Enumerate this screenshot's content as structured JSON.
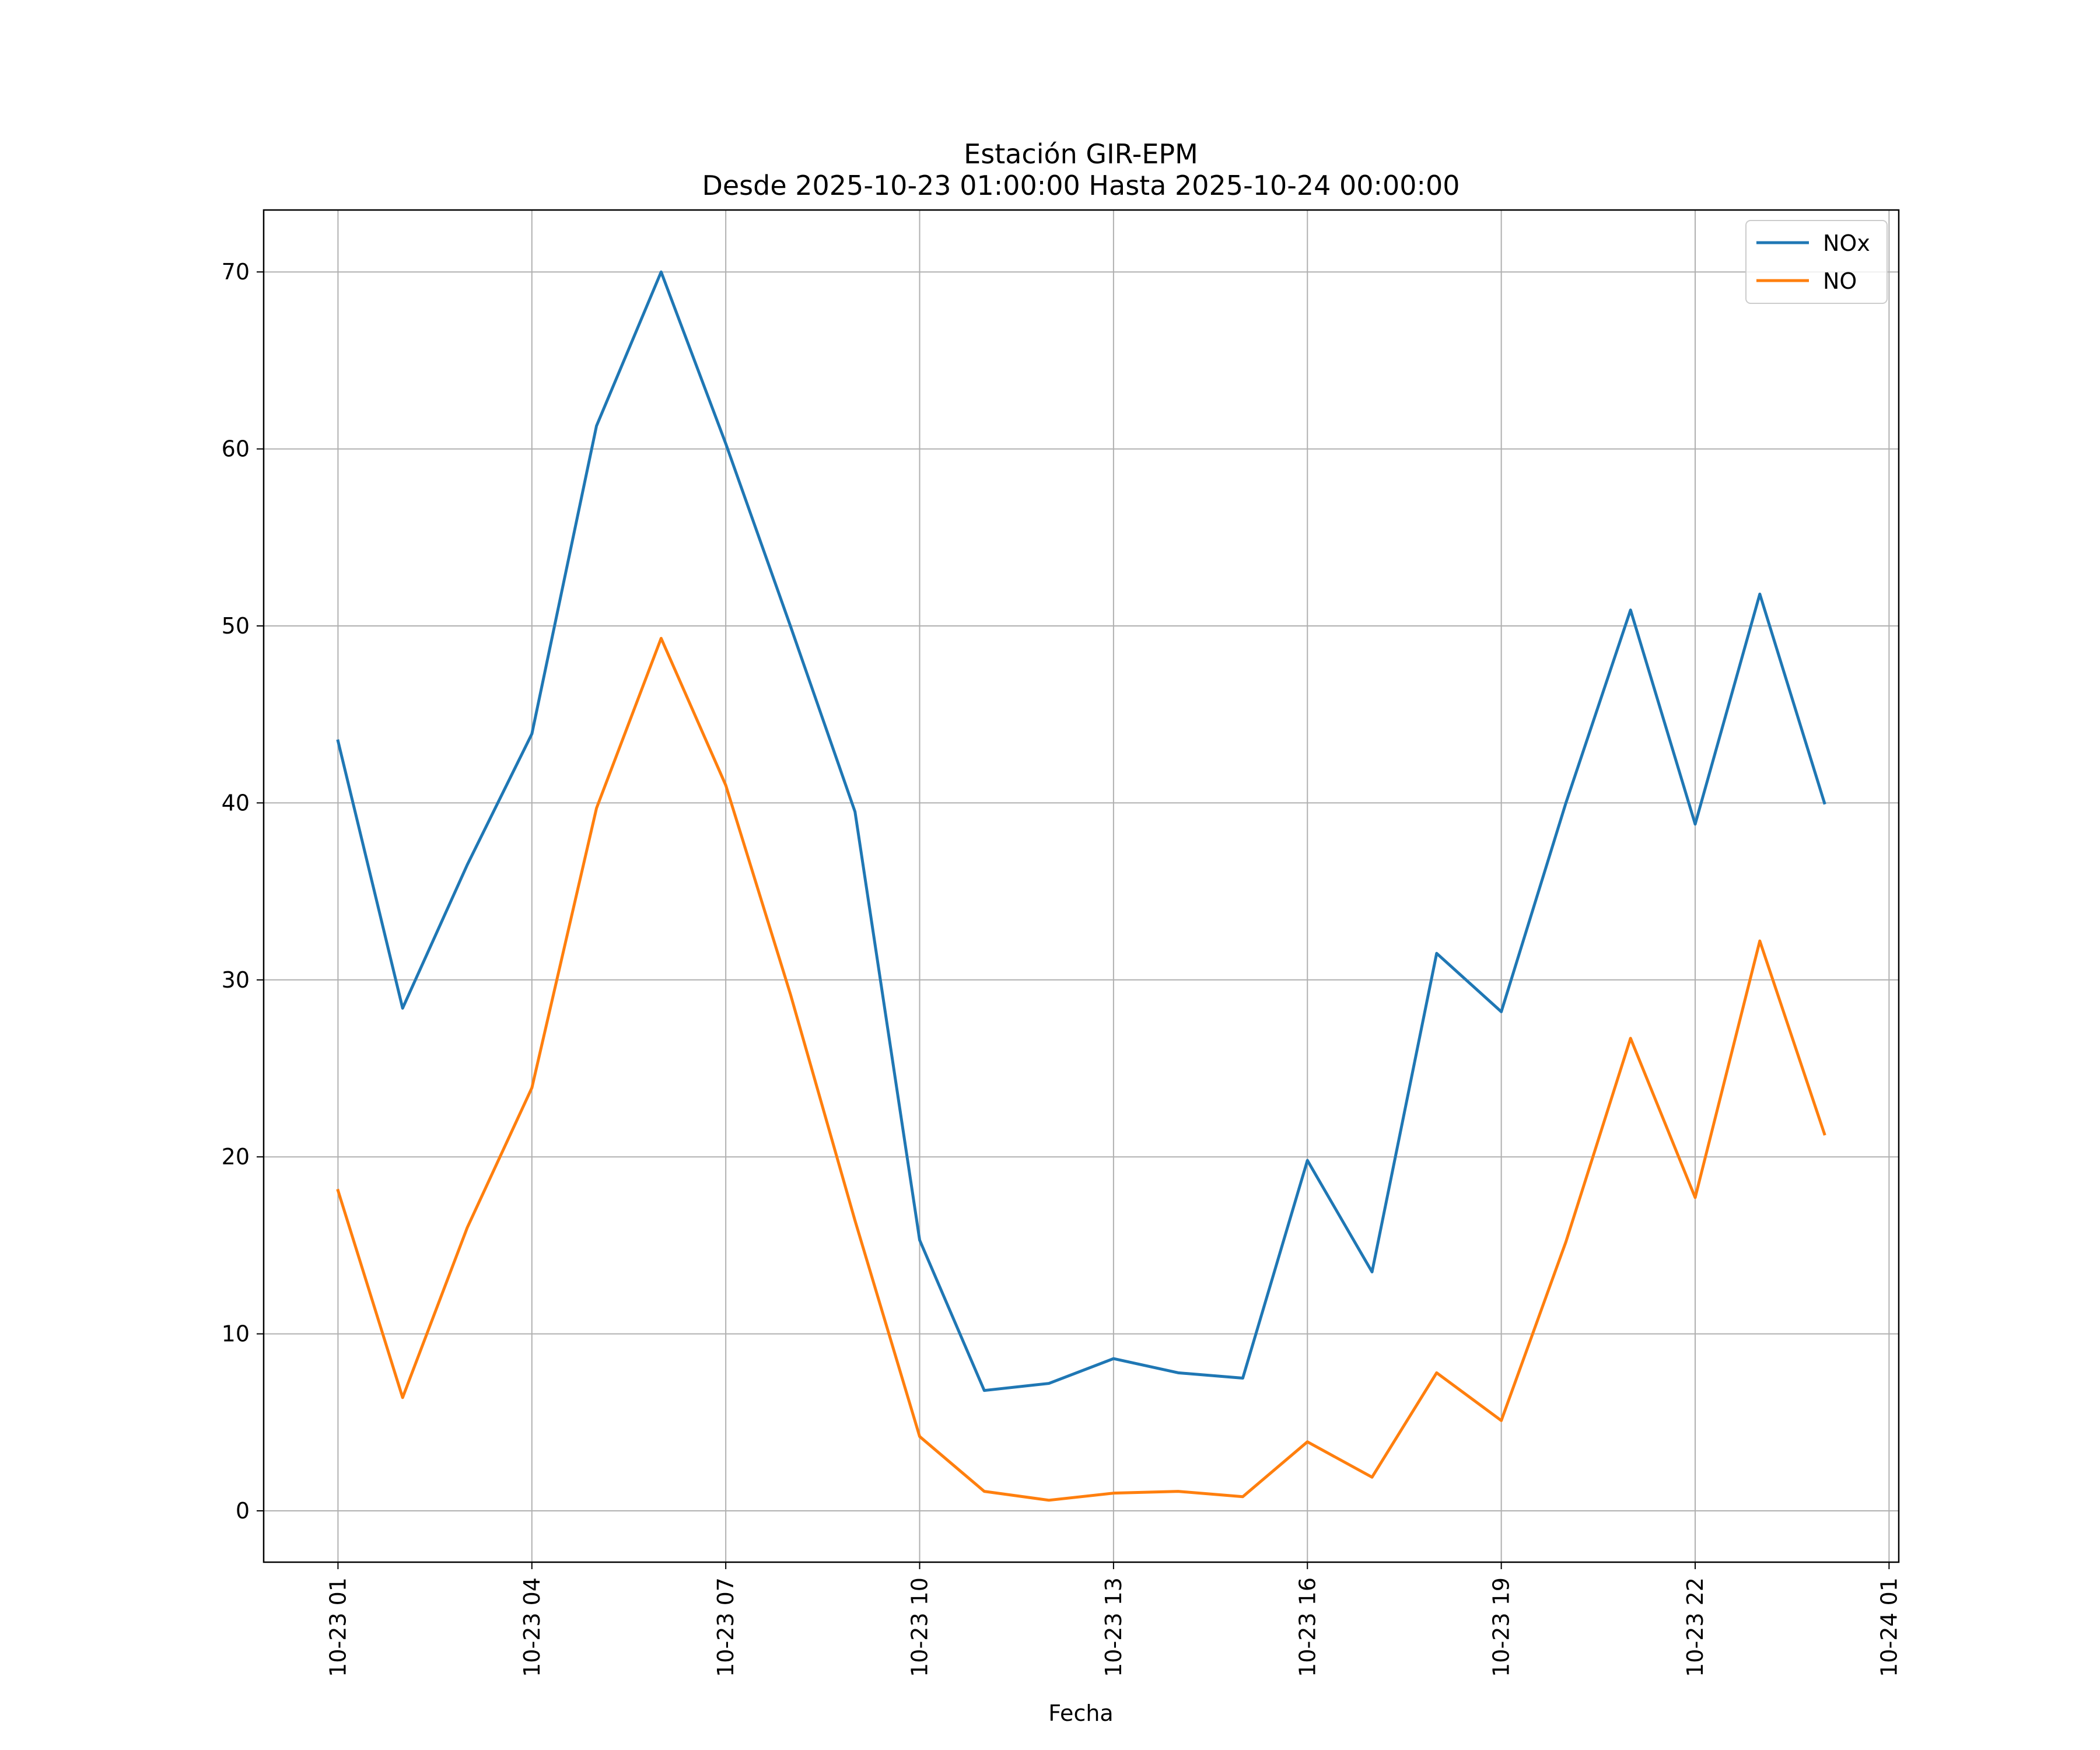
{
  "chart_data": {
    "type": "line",
    "title": "Estación GIR-EPM",
    "subtitle": "Desde 2025-10-23 01:00:00 Hasta 2025-10-24 00:00:00",
    "xlabel": "Fecha",
    "ylabel": "",
    "x_hours": [
      1,
      2,
      3,
      4,
      5,
      6,
      7,
      8,
      9,
      10,
      11,
      12,
      13,
      14,
      15,
      16,
      17,
      18,
      19,
      20,
      21,
      22,
      23,
      24
    ],
    "xlim": [
      -0.15,
      25.15
    ],
    "ylim": [
      -2.9,
      73.5
    ],
    "y_ticks": [
      0,
      10,
      20,
      30,
      40,
      50,
      60,
      70
    ],
    "x_ticks": [
      {
        "hour": 1,
        "label": "10-23 01"
      },
      {
        "hour": 4,
        "label": "10-23 04"
      },
      {
        "hour": 7,
        "label": "10-23 07"
      },
      {
        "hour": 10,
        "label": "10-23 10"
      },
      {
        "hour": 13,
        "label": "10-23 13"
      },
      {
        "hour": 16,
        "label": "10-23 16"
      },
      {
        "hour": 19,
        "label": "10-23 19"
      },
      {
        "hour": 22,
        "label": "10-23 22"
      },
      {
        "hour": 25,
        "label": "10-24 01"
      }
    ],
    "grid": true,
    "legend_position": "top-right",
    "series": [
      {
        "name": "NOx",
        "color": "#1f77b4",
        "values": [
          43.5,
          28.4,
          36.5,
          43.9,
          61.3,
          70.0,
          60.3,
          50.0,
          39.5,
          15.3,
          6.8,
          7.2,
          8.6,
          7.8,
          7.5,
          19.8,
          13.5,
          31.5,
          28.2,
          40.0,
          50.9,
          38.8,
          51.8,
          40.0
        ]
      },
      {
        "name": "NO",
        "color": "#ff7f0e",
        "values": [
          18.1,
          6.4,
          16.0,
          23.9,
          39.7,
          49.3,
          41.0,
          29.2,
          16.4,
          4.2,
          1.1,
          0.6,
          1.0,
          1.1,
          0.8,
          3.9,
          1.9,
          7.8,
          5.1,
          15.2,
          26.7,
          17.7,
          32.2,
          21.3
        ]
      }
    ]
  }
}
